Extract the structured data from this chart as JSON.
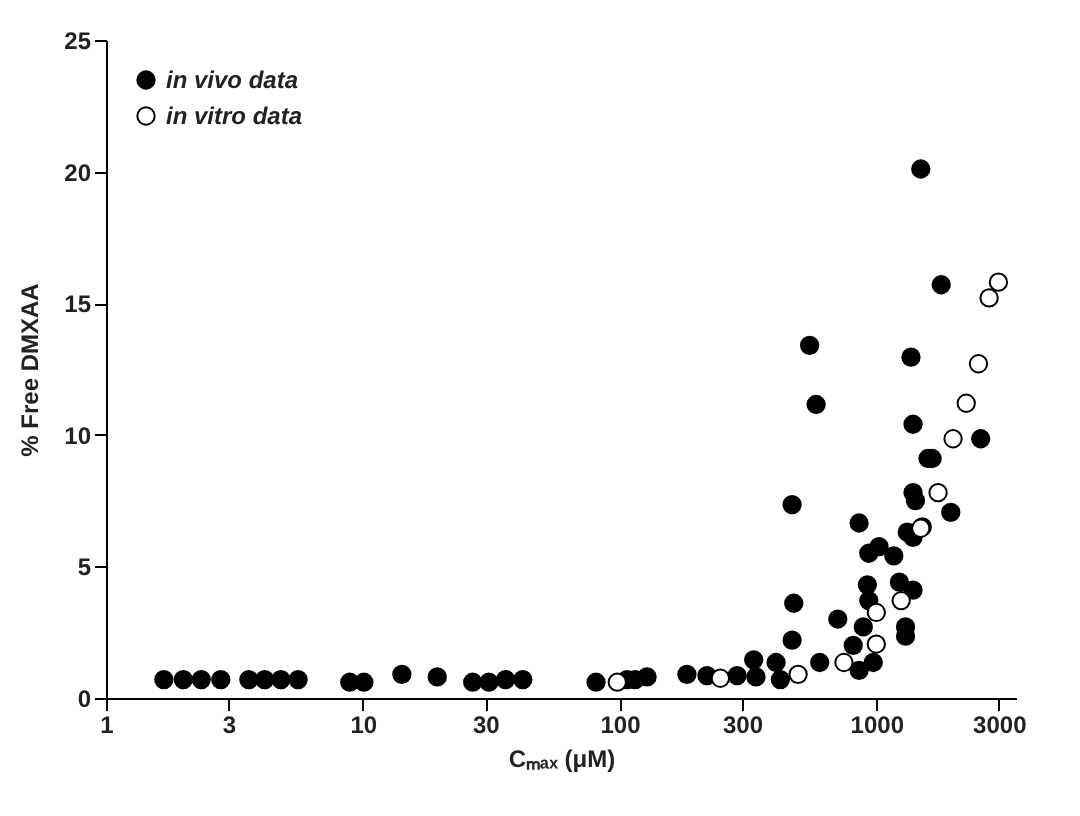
{
  "chart_data": {
    "type": "scatter",
    "xlabel": "Cₘₐₓ (μM)",
    "ylabel": "% Free DMXAA",
    "log": "x",
    "xlim": [
      1,
      3500
    ],
    "xticks": [
      1,
      3,
      10,
      30,
      100,
      300,
      1000,
      3000
    ],
    "ylim": [
      0,
      25
    ],
    "yticks": [
      0,
      5,
      10,
      15,
      20,
      25
    ],
    "grid": false,
    "legend": "top left",
    "marker": "circle",
    "series": [
      {
        "name": "in vivo data",
        "color": "#000000",
        "x": [
          1.68,
          2.0,
          2.35,
          2.8,
          3.6,
          4.15,
          4.8,
          5.6,
          8.9,
          10.1,
          14.2,
          19.5,
          26.8,
          31,
          36,
          42,
          81,
          115,
          107,
          128,
          183,
          219,
          287,
          333,
          340,
          407,
          423,
          470,
          477,
          470,
          602,
          708,
          813,
          857,
          890,
          923,
          935,
          973,
          935,
          1025,
          1170,
          857,
          1230,
          1390,
          1300,
          1300,
          1320,
          1510,
          1390,
          1420,
          1390,
          1590,
          1650,
          1950,
          2550,
          1390,
          1490,
          1790,
          550,
          1365,
          583
        ],
        "values": [
          0.7,
          0.7,
          0.7,
          0.7,
          0.7,
          0.7,
          0.7,
          0.7,
          0.6,
          0.6,
          0.9,
          0.8,
          0.6,
          0.6,
          0.7,
          0.7,
          0.6,
          0.7,
          0.7,
          0.8,
          0.9,
          0.85,
          0.85,
          1.45,
          0.8,
          1.35,
          0.7,
          2.2,
          3.6,
          7.35,
          1.35,
          3.0,
          2.0,
          1.05,
          2.7,
          4.3,
          3.7,
          1.35,
          5.5,
          5.75,
          5.4,
          6.65,
          4.4,
          4.1,
          2.7,
          2.35,
          6.3,
          6.5,
          6.1,
          7.5,
          7.8,
          9.1,
          9.1,
          7.05,
          9.85,
          10.4,
          20.1,
          15.7,
          13.4,
          12.95,
          11.15
        ]
      },
      {
        "name": "in vitro data",
        "color": "#ffffff",
        "x": [
          98,
          247,
          496,
          748,
          1000,
          1000,
          1250,
          1490,
          1740,
          1990,
          2240,
          2500,
          2750,
          2990
        ],
        "values": [
          0.6,
          0.75,
          0.9,
          1.35,
          3.25,
          2.05,
          3.7,
          6.45,
          7.8,
          9.85,
          11.2,
          12.7,
          15.2,
          15.8
        ]
      }
    ]
  }
}
